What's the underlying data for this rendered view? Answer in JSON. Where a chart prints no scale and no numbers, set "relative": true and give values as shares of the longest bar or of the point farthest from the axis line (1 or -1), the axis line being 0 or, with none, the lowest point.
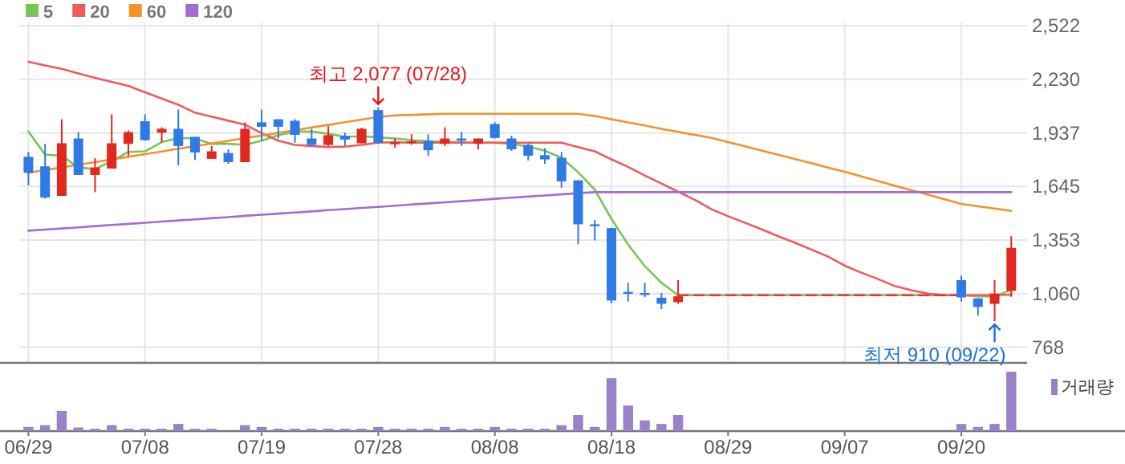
{
  "chart_data": [
    {
      "type": "candlestick",
      "categories": [
        null,
        null,
        null,
        null,
        null,
        null,
        null,
        null,
        null,
        null,
        null,
        null,
        null,
        null,
        null,
        null,
        null,
        null,
        null,
        null,
        null,
        null,
        null,
        null,
        null,
        null,
        null,
        null,
        null,
        null,
        null,
        null,
        null,
        null,
        null,
        null,
        null,
        null,
        null,
        null,
        null,
        null,
        null,
        null,
        null,
        null,
        null,
        null,
        null,
        null,
        null,
        null,
        null,
        null,
        null,
        null,
        null,
        null,
        null,
        null
      ],
      "ohlc": [
        [
          1807,
          1834,
          1652,
          1720
        ],
        [
          1755,
          1878,
          1579,
          1585
        ],
        [
          1594,
          2012,
          1594,
          1881
        ],
        [
          1907,
          1942,
          1708,
          1708
        ],
        [
          1708,
          1799,
          1614,
          1749
        ],
        [
          1743,
          2039,
          1743,
          1881
        ],
        [
          1878,
          1951,
          1813,
          1942
        ],
        [
          2001,
          2039,
          1895,
          1898
        ],
        [
          1939,
          1968,
          1886,
          1960
        ],
        [
          1960,
          2065,
          1761,
          1866
        ],
        [
          1916,
          1916,
          1790,
          1831
        ],
        [
          1796,
          1866,
          1796,
          1837
        ],
        [
          1828,
          1848,
          1769,
          1778
        ],
        [
          1778,
          1995,
          1778,
          1960
        ],
        [
          1995,
          2065,
          1895,
          1971
        ],
        [
          2012,
          2012,
          1907,
          1971
        ],
        [
          2004,
          2012,
          1884,
          1927
        ],
        [
          1907,
          1960,
          1863,
          1872
        ],
        [
          1872,
          1974,
          1866,
          1925
        ],
        [
          1922,
          1939,
          1866,
          1901
        ],
        [
          1881,
          1966,
          1881,
          1960
        ],
        [
          2062,
          2077,
          1878,
          1883
        ],
        [
          1881,
          1907,
          1857,
          1886
        ],
        [
          1884,
          1930,
          1872,
          1892
        ],
        [
          1895,
          1930,
          1813,
          1843
        ],
        [
          1878,
          1968,
          1866,
          1907
        ],
        [
          1907,
          1942,
          1866,
          1895
        ],
        [
          1878,
          1907,
          1848,
          1907
        ],
        [
          1986,
          1995,
          1907,
          1910
        ],
        [
          1907,
          1922,
          1840,
          1848
        ],
        [
          1872,
          1881,
          1787,
          1813
        ],
        [
          1816,
          1854,
          1769,
          1793
        ],
        [
          1802,
          1834,
          1638,
          1673
        ],
        [
          1679,
          1679,
          1330,
          1439
        ],
        [
          1439,
          1462,
          1351,
          1433
        ],
        [
          1418,
          1418,
          1008,
          1023
        ],
        [
          1070,
          1120,
          1017,
          1061
        ],
        [
          1064,
          1120,
          1041,
          1058
        ],
        [
          1038,
          1064,
          976,
          1005
        ],
        [
          1014,
          1134,
          1005,
          1046
        ],
        null,
        null,
        null,
        null,
        null,
        null,
        null,
        null,
        null,
        null,
        null,
        null,
        null,
        null,
        null,
        null,
        [
          1134,
          1158,
          1017,
          1040
        ],
        [
          1035,
          1035,
          941,
          988
        ],
        [
          1005,
          1134,
          910,
          1061
        ],
        [
          1076,
          1374,
          1043,
          1310
        ]
      ],
      "series": [
        {
          "name": "5",
          "color": "#77c655",
          "type": "line",
          "values": [
            1945,
            1819,
            1813,
            1749,
            1740,
            1784,
            1834,
            1837,
            1887,
            1910,
            1907,
            1878,
            1878,
            1872,
            1895,
            1925,
            1945,
            1945,
            1933,
            1916,
            1919,
            1913,
            1907,
            1898,
            1892,
            1889,
            1886,
            1884,
            1884,
            1878,
            1863,
            1840,
            1802,
            1723,
            1628,
            1468,
            1328,
            1211,
            1120,
            1052,
            1052,
            1052,
            1052,
            1052,
            1052,
            1052,
            1052,
            1052,
            1052,
            1052,
            1052,
            1052,
            1052,
            1052,
            1052,
            1052,
            1052,
            1046,
            1046,
            1081
          ]
        },
        {
          "name": "20",
          "color": "#ef5b5b",
          "type": "line",
          "values": [
            2325,
            2306,
            2287,
            2262,
            2238,
            2216,
            2194,
            2159,
            2125,
            2091,
            2048,
            2026,
            2004,
            1983,
            1936,
            1895,
            1872,
            1866,
            1860,
            1863,
            1872,
            1884,
            1887,
            1884,
            1884,
            1884,
            1884,
            1884,
            1884,
            1884,
            1884,
            1884,
            1884,
            1860,
            1837,
            1793,
            1752,
            1705,
            1661,
            1617,
            1573,
            1521,
            1483,
            1448,
            1412,
            1374,
            1339,
            1301,
            1263,
            1213,
            1175,
            1140,
            1102,
            1079,
            1061,
            1052,
            1052,
            1052,
            1052,
            1055
          ]
        },
        {
          "name": "60",
          "color": "#f4912a",
          "type": "line",
          "values": [
            1720,
            1735,
            1749,
            1764,
            1778,
            1793,
            1807,
            1822,
            1836,
            1851,
            1865,
            1880,
            1894,
            1909,
            1923,
            1938,
            1952,
            1967,
            1981,
            1996,
            2010,
            2024,
            2033,
            2036,
            2039,
            2042,
            2042,
            2042,
            2042,
            2042,
            2042,
            2042,
            2042,
            2042,
            2030,
            2012,
            1995,
            1978,
            1960,
            1943,
            1927,
            1910,
            1887,
            1864,
            1841,
            1818,
            1795,
            1772,
            1748,
            1725,
            1700,
            1675,
            1650,
            1625,
            1600,
            1575,
            1550,
            1537,
            1525,
            1512
          ]
        },
        {
          "name": "120",
          "color": "#a56bd0",
          "type": "line",
          "values": [
            1404,
            1410,
            1416,
            1422,
            1429,
            1435,
            1441,
            1447,
            1454,
            1460,
            1466,
            1472,
            1478,
            1485,
            1491,
            1497,
            1503,
            1509,
            1516,
            1522,
            1528,
            1534,
            1540,
            1547,
            1553,
            1559,
            1565,
            1571,
            1578,
            1584,
            1590,
            1596,
            1602,
            1609,
            1614,
            1614,
            1614,
            1614,
            1614,
            1614,
            1614,
            1614,
            1614,
            1614,
            1614,
            1614,
            1614,
            1614,
            1614,
            1614,
            1614,
            1614,
            1614,
            1614,
            1614,
            1614,
            1614,
            1614,
            1614,
            1614
          ]
        },
        {
          "color": "#e53935",
          "type": "line",
          "line_style": "dashed",
          "values": [
            null,
            null,
            null,
            null,
            null,
            null,
            null,
            null,
            null,
            null,
            null,
            null,
            null,
            null,
            null,
            null,
            null,
            null,
            null,
            null,
            null,
            null,
            null,
            null,
            null,
            null,
            null,
            null,
            null,
            null,
            null,
            null,
            null,
            null,
            null,
            null,
            null,
            null,
            null,
            1052,
            1052,
            1052,
            1052,
            1052,
            1052,
            1052,
            1052,
            1052,
            1052,
            1052,
            1052,
            1052,
            1052,
            1052,
            1052,
            1052,
            1052,
            null,
            null,
            null
          ]
        }
      ],
      "ylim": [
        683,
        2540
      ],
      "yticks": [
        {
          "value": 768,
          "label": "768"
        },
        {
          "value": 1060,
          "label": "1,060"
        },
        {
          "value": 1353,
          "label": "1,353"
        },
        {
          "value": 1645,
          "label": "1,645"
        },
        {
          "value": 1937,
          "label": "1,937"
        },
        {
          "value": 2230,
          "label": "2,230"
        },
        {
          "value": 2522,
          "label": "2,522"
        }
      ],
      "grid": true,
      "legend": "top left",
      "tick_labels": "y",
      "annotations": [
        "최고 2,077 (07/28)",
        "최저 910 (09/22)"
      ]
    },
    {
      "type": "bar",
      "categories": [
        "06/29",
        null,
        null,
        null,
        null,
        null,
        null,
        "07/08",
        null,
        null,
        null,
        null,
        null,
        null,
        "07/19",
        null,
        null,
        null,
        null,
        null,
        null,
        "07/28",
        null,
        null,
        null,
        null,
        null,
        null,
        "08/08",
        null,
        null,
        null,
        null,
        null,
        null,
        "08/18",
        null,
        null,
        null,
        null,
        null,
        null,
        "08/29",
        null,
        null,
        null,
        null,
        null,
        null,
        "09/07",
        null,
        null,
        null,
        null,
        null,
        null,
        "09/20",
        null,
        null,
        null
      ],
      "series": [
        {
          "name": "거래량",
          "color": "#9a82c9",
          "values": [
            0.07,
            0.1,
            0.34,
            0.06,
            0.04,
            0.1,
            0.04,
            0.04,
            0.04,
            0.12,
            0.04,
            0.04,
            null,
            0.1,
            0.07,
            0.04,
            0.04,
            0.04,
            0.04,
            0.04,
            0.04,
            0.07,
            0.04,
            0.04,
            0.04,
            0.07,
            0.04,
            0.04,
            0.07,
            0.04,
            0.04,
            0.04,
            0.1,
            0.27,
            0.07,
            0.89,
            0.43,
            0.18,
            0.12,
            0.27,
            null,
            null,
            null,
            null,
            null,
            null,
            null,
            null,
            null,
            null,
            null,
            null,
            null,
            null,
            null,
            null,
            0.12,
            0.07,
            0.12,
            1
          ]
        }
      ],
      "relative": true,
      "legend": "top right",
      "tick_labels": "x"
    }
  ]
}
